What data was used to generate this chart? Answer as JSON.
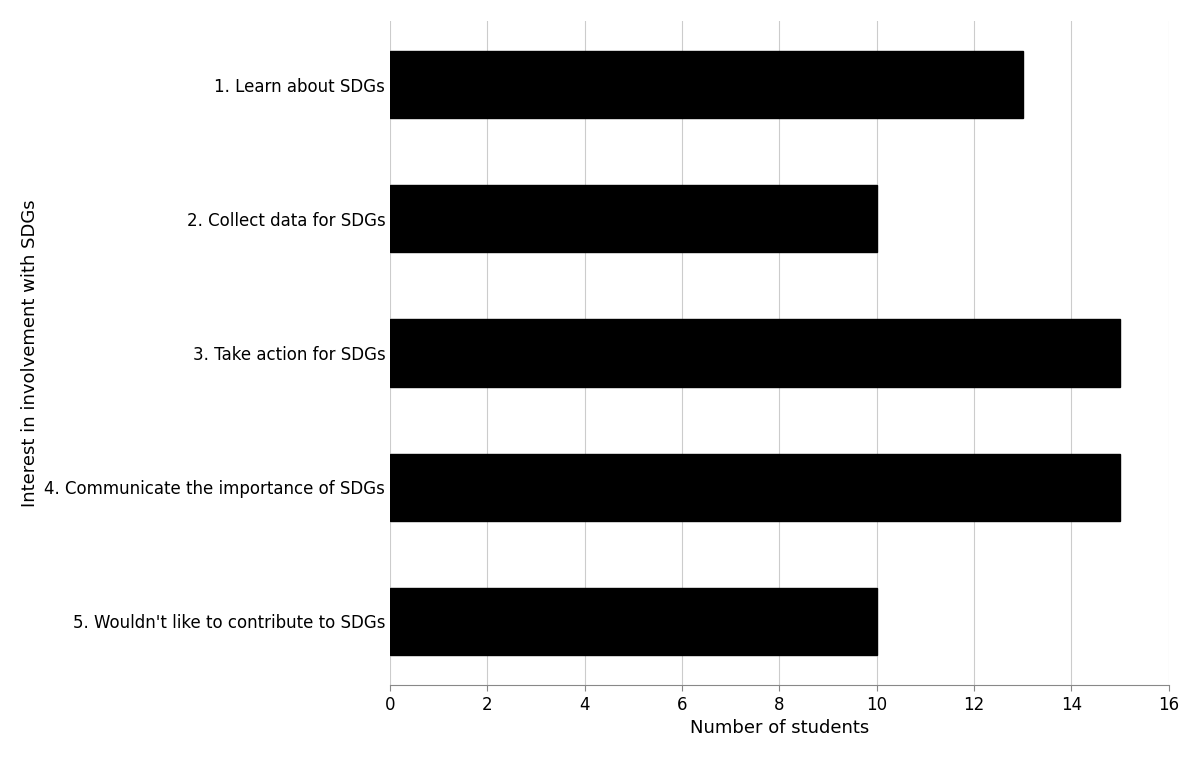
{
  "categories": [
    "5. Wouldn't like to contribute to SDGs",
    "4. Communicate the importance of SDGs",
    "3. Take action for SDGs",
    "2. Collect data for SDGs",
    "1. Learn about SDGs"
  ],
  "values": [
    10,
    15,
    15,
    10,
    13
  ],
  "bar_color": "#000000",
  "xlabel": "Number of students",
  "ylabel": "Interest in involvement with SDGs",
  "xlim": [
    0,
    16
  ],
  "xticks": [
    0,
    2,
    4,
    6,
    8,
    10,
    12,
    14,
    16
  ],
  "background_color": "#ffffff",
  "grid_color": "#cccccc",
  "bar_height": 0.5,
  "xlabel_fontsize": 13,
  "ylabel_fontsize": 13,
  "tick_fontsize": 12,
  "category_fontsize": 12
}
